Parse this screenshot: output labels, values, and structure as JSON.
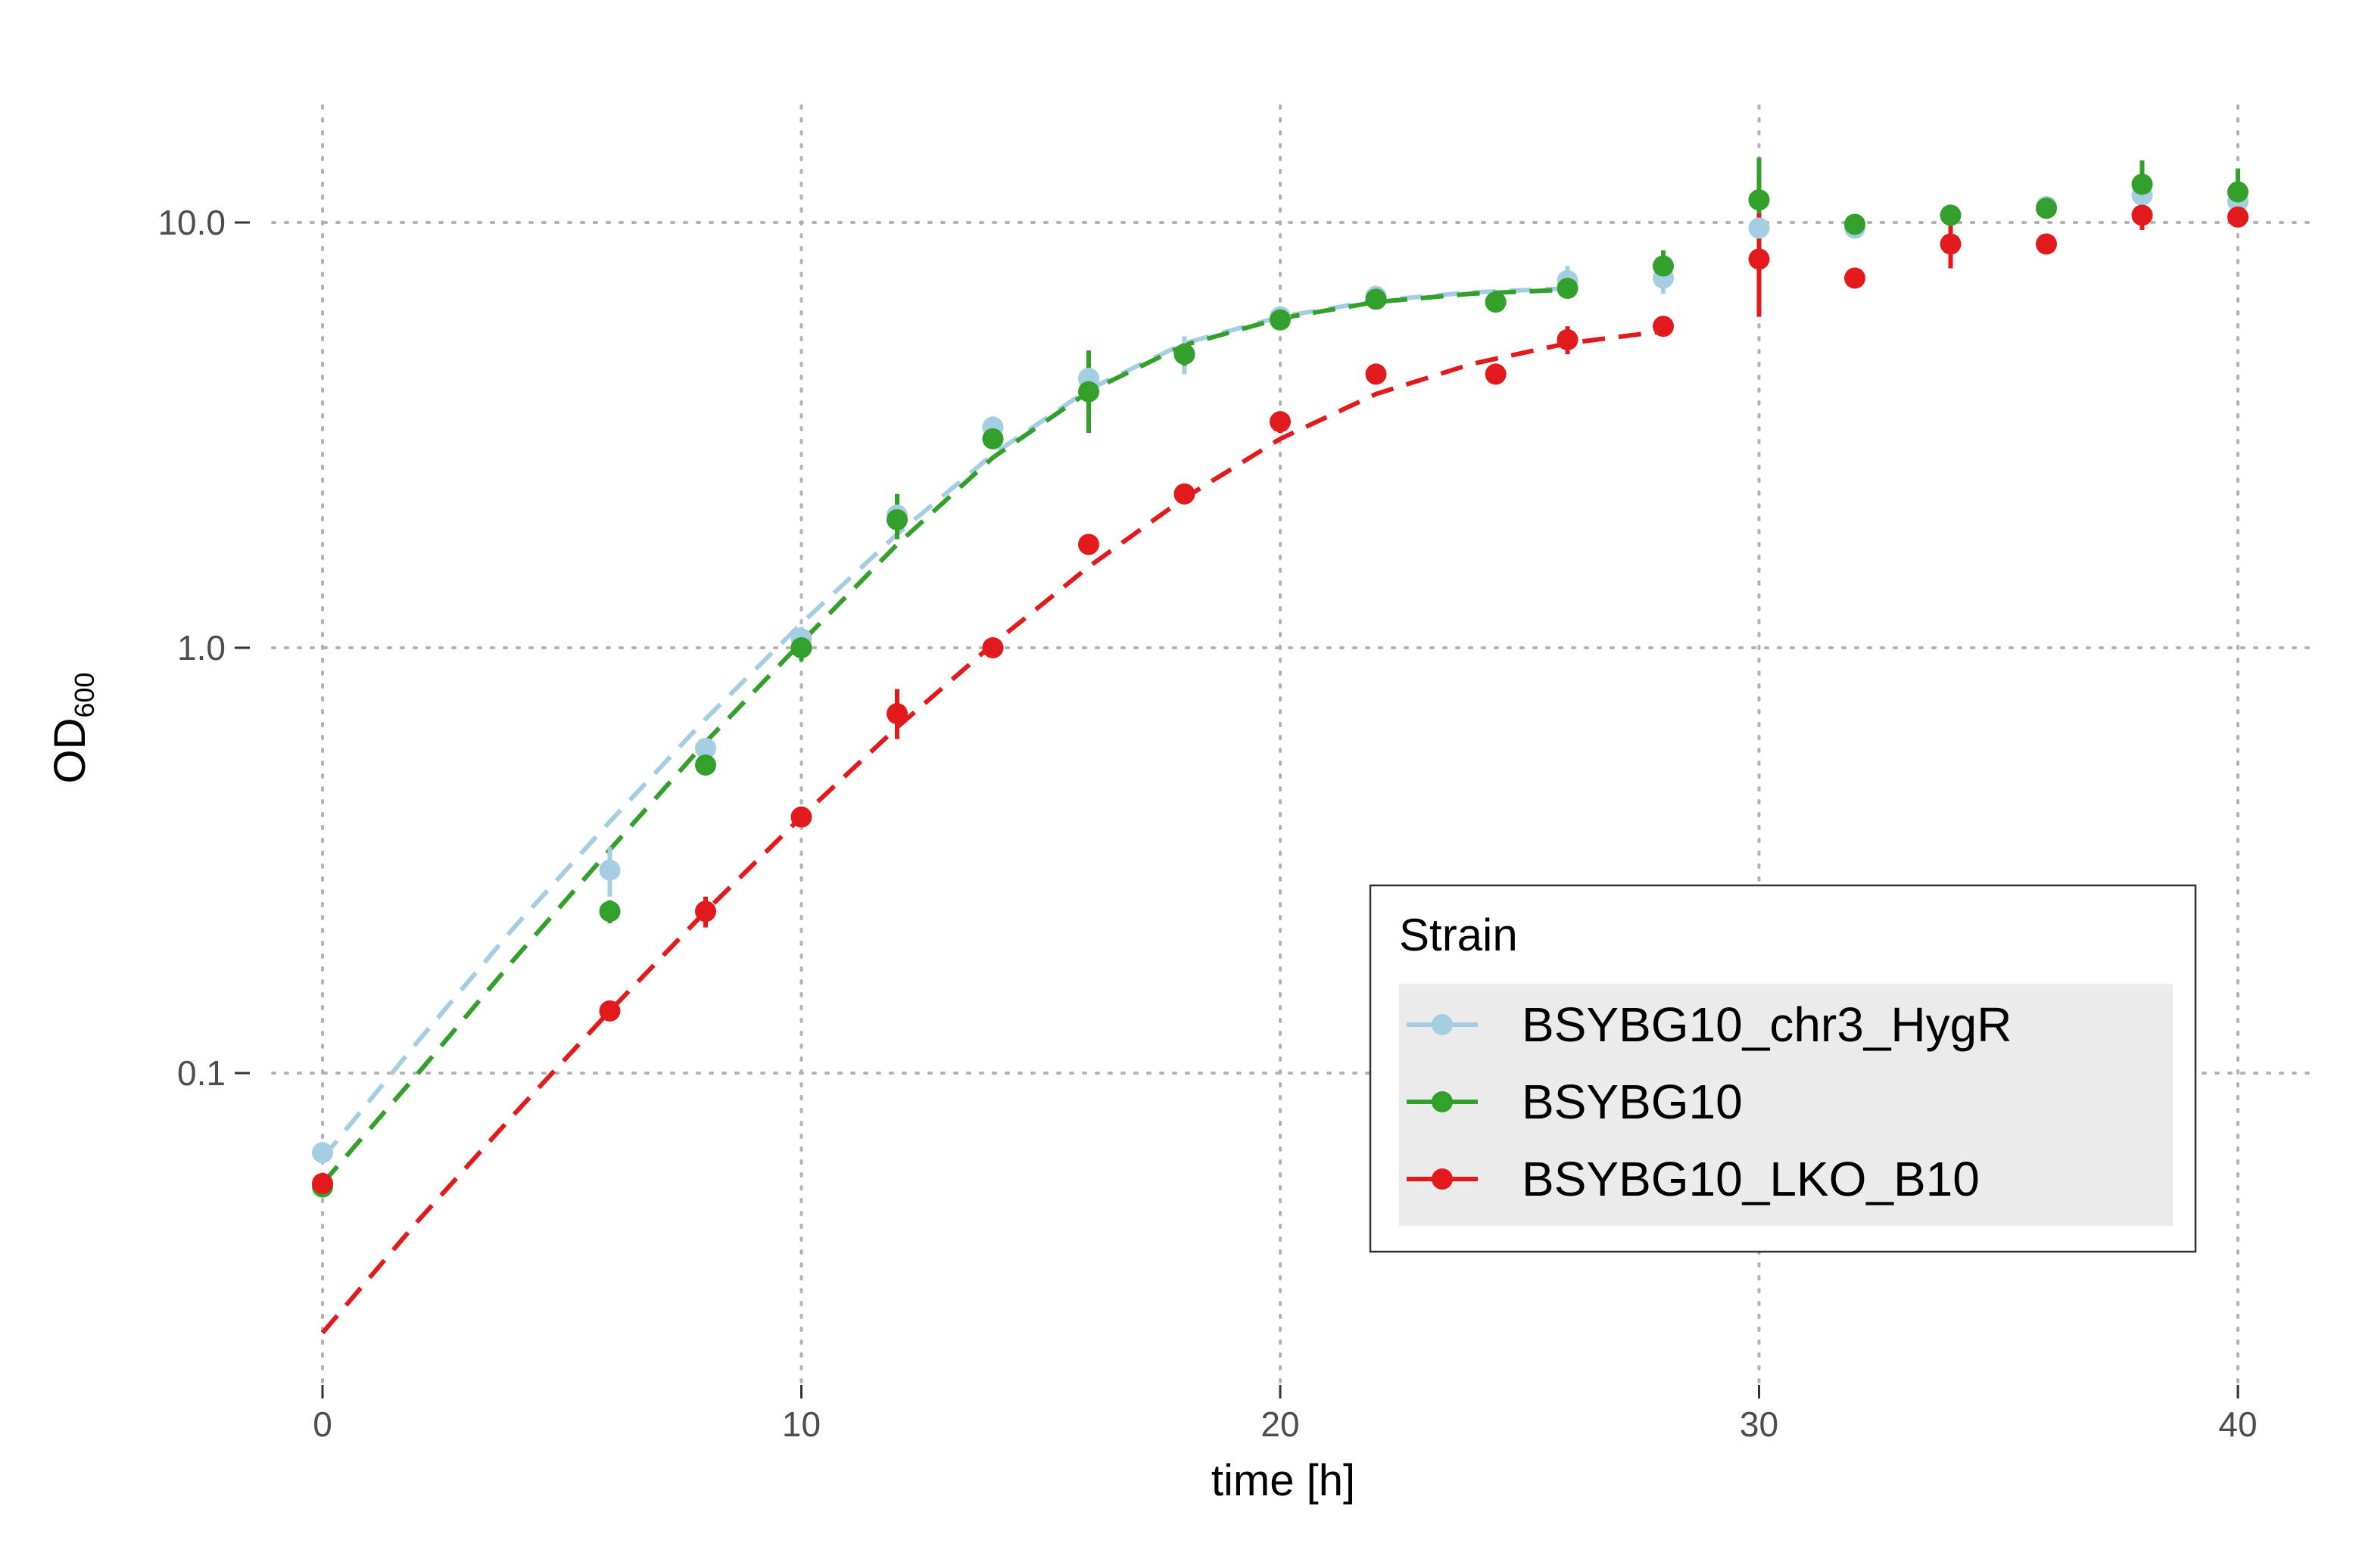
{
  "chart_data": {
    "type": "scatter",
    "title": "",
    "xlabel": "time [h]",
    "ylabel": "OD",
    "ylabel_subscript": "600",
    "y_scale": "log",
    "xlim": [
      0,
      40
    ],
    "ylim": [
      0.02,
      18
    ],
    "x_ticks": [
      0,
      10,
      20,
      30,
      40
    ],
    "y_ticks": [
      0.1,
      1.0,
      10.0
    ],
    "x_tick_labels": [
      "0",
      "10",
      "20",
      "30",
      "40"
    ],
    "y_tick_labels": [
      "0.1",
      "1.0",
      "10.0"
    ],
    "grid": "dotted",
    "legend": {
      "title": "Strain",
      "position": "bottom-right inside"
    },
    "series": [
      {
        "name": "BSYBG10_chr3_HygR",
        "color": "#a6cee3",
        "points": [
          {
            "x": 0,
            "y": 0.065,
            "lo": 0.062,
            "hi": 0.068
          },
          {
            "x": 6,
            "y": 0.3,
            "lo": 0.26,
            "hi": 0.34
          },
          {
            "x": 8,
            "y": 0.58,
            "lo": 0.55,
            "hi": 0.61
          },
          {
            "x": 10,
            "y": 1.05,
            "lo": 0.98,
            "hi": 1.12
          },
          {
            "x": 12,
            "y": 2.05,
            "lo": 1.9,
            "hi": 2.2
          },
          {
            "x": 14,
            "y": 3.3,
            "lo": 3.1,
            "hi": 3.5
          },
          {
            "x": 16,
            "y": 4.3,
            "lo": 3.9,
            "hi": 4.7
          },
          {
            "x": 18,
            "y": 4.9,
            "lo": 4.4,
            "hi": 5.4
          },
          {
            "x": 20,
            "y": 6.0,
            "lo": 5.7,
            "hi": 6.3
          },
          {
            "x": 22,
            "y": 6.7,
            "lo": 6.3,
            "hi": 7.1
          },
          {
            "x": 24.5,
            "y": 6.5,
            "lo": 6.2,
            "hi": 6.8
          },
          {
            "x": 26,
            "y": 7.3,
            "lo": 6.8,
            "hi": 7.9
          },
          {
            "x": 28,
            "y": 7.4,
            "lo": 6.8,
            "hi": 8.0
          },
          {
            "x": 30,
            "y": 9.7,
            "lo": 9.2,
            "hi": 10.2
          },
          {
            "x": 32,
            "y": 9.7,
            "lo": 9.2,
            "hi": 10.2
          },
          {
            "x": 34,
            "y": 10.4,
            "lo": 10.0,
            "hi": 10.8
          },
          {
            "x": 36,
            "y": 10.9,
            "lo": 10.3,
            "hi": 11.5
          },
          {
            "x": 38,
            "y": 11.6,
            "lo": 10.8,
            "hi": 12.4
          },
          {
            "x": 40,
            "y": 11.2,
            "lo": 10.4,
            "hi": 12.0
          }
        ],
        "fit": {
          "x": [
            0,
            2,
            4,
            6,
            8,
            10,
            12,
            14,
            16,
            18,
            20,
            22,
            24,
            26
          ],
          "y": [
            0.063,
            0.119,
            0.22,
            0.39,
            0.68,
            1.14,
            1.85,
            2.85,
            4.05,
            5.2,
            6.0,
            6.55,
            6.85,
            7.0
          ]
        }
      },
      {
        "name": "BSYBG10",
        "color": "#33a02c",
        "points": [
          {
            "x": 0,
            "y": 0.054,
            "lo": 0.051,
            "hi": 0.057
          },
          {
            "x": 6,
            "y": 0.24,
            "lo": 0.225,
            "hi": 0.255
          },
          {
            "x": 8,
            "y": 0.53,
            "lo": 0.51,
            "hi": 0.55
          },
          {
            "x": 10,
            "y": 1.0,
            "lo": 0.93,
            "hi": 1.07
          },
          {
            "x": 12,
            "y": 2.0,
            "lo": 1.8,
            "hi": 2.3
          },
          {
            "x": 14,
            "y": 3.1,
            "lo": 2.95,
            "hi": 3.25
          },
          {
            "x": 16,
            "y": 4.0,
            "lo": 3.2,
            "hi": 5.0
          },
          {
            "x": 18,
            "y": 4.9,
            "lo": 4.6,
            "hi": 5.2
          },
          {
            "x": 20,
            "y": 5.9,
            "lo": 5.7,
            "hi": 6.1
          },
          {
            "x": 22,
            "y": 6.6,
            "lo": 6.4,
            "hi": 6.8
          },
          {
            "x": 24.5,
            "y": 6.5,
            "lo": 6.3,
            "hi": 6.7
          },
          {
            "x": 26,
            "y": 7.0,
            "lo": 6.7,
            "hi": 7.3
          },
          {
            "x": 28,
            "y": 7.9,
            "lo": 7.2,
            "hi": 8.6
          },
          {
            "x": 30,
            "y": 11.3,
            "lo": 9.2,
            "hi": 14.2
          },
          {
            "x": 32,
            "y": 9.9,
            "lo": 9.6,
            "hi": 10.2
          },
          {
            "x": 34,
            "y": 10.4,
            "lo": 10.1,
            "hi": 10.7
          },
          {
            "x": 36,
            "y": 10.8,
            "lo": 10.4,
            "hi": 11.2
          },
          {
            "x": 38,
            "y": 12.3,
            "lo": 11.0,
            "hi": 14.0
          },
          {
            "x": 40,
            "y": 11.8,
            "lo": 10.5,
            "hi": 13.4
          }
        ],
        "fit": {
          "x": [
            0,
            2,
            4,
            6,
            8,
            10,
            12,
            14,
            16,
            18,
            20,
            22,
            24,
            26
          ],
          "y": [
            0.055,
            0.1,
            0.185,
            0.335,
            0.6,
            1.03,
            1.75,
            2.8,
            4.0,
            5.15,
            5.95,
            6.5,
            6.8,
            6.95
          ]
        }
      },
      {
        "name": "BSYBG10_LKO_B10",
        "color": "#e31a1c",
        "points": [
          {
            "x": 0,
            "y": 0.055,
            "lo": 0.052,
            "hi": 0.058
          },
          {
            "x": 6,
            "y": 0.14,
            "lo": 0.135,
            "hi": 0.145
          },
          {
            "x": 8,
            "y": 0.24,
            "lo": 0.22,
            "hi": 0.26
          },
          {
            "x": 10,
            "y": 0.4,
            "lo": 0.38,
            "hi": 0.42
          },
          {
            "x": 12,
            "y": 0.7,
            "lo": 0.61,
            "hi": 0.8
          },
          {
            "x": 14,
            "y": 1.0,
            "lo": 0.95,
            "hi": 1.05
          },
          {
            "x": 16,
            "y": 1.75,
            "lo": 1.68,
            "hi": 1.82
          },
          {
            "x": 18,
            "y": 2.3,
            "lo": 2.2,
            "hi": 2.4
          },
          {
            "x": 20,
            "y": 3.4,
            "lo": 3.2,
            "hi": 3.6
          },
          {
            "x": 22,
            "y": 4.4,
            "lo": 4.2,
            "hi": 4.6
          },
          {
            "x": 24.5,
            "y": 4.4,
            "lo": 4.2,
            "hi": 4.6
          },
          {
            "x": 26,
            "y": 5.3,
            "lo": 4.9,
            "hi": 5.7
          },
          {
            "x": 28,
            "y": 5.7,
            "lo": 5.4,
            "hi": 6.0
          },
          {
            "x": 30,
            "y": 8.2,
            "lo": 6.0,
            "hi": 10.5
          },
          {
            "x": 32,
            "y": 7.4,
            "lo": 7.2,
            "hi": 7.6
          },
          {
            "x": 34,
            "y": 8.9,
            "lo": 7.8,
            "hi": 10.1
          },
          {
            "x": 36,
            "y": 8.9,
            "lo": 8.6,
            "hi": 9.2
          },
          {
            "x": 38,
            "y": 10.4,
            "lo": 9.6,
            "hi": 11.2
          },
          {
            "x": 40,
            "y": 10.3,
            "lo": 9.9,
            "hi": 10.7
          }
        ],
        "fit": {
          "x": [
            0,
            2,
            4,
            6,
            8,
            10,
            12,
            14,
            16,
            18,
            20,
            22,
            24,
            26,
            28
          ],
          "y": [
            0.0245,
            0.045,
            0.08,
            0.14,
            0.24,
            0.4,
            0.65,
            1.02,
            1.55,
            2.25,
            3.1,
            3.95,
            4.65,
            5.2,
            5.55
          ]
        }
      }
    ]
  }
}
